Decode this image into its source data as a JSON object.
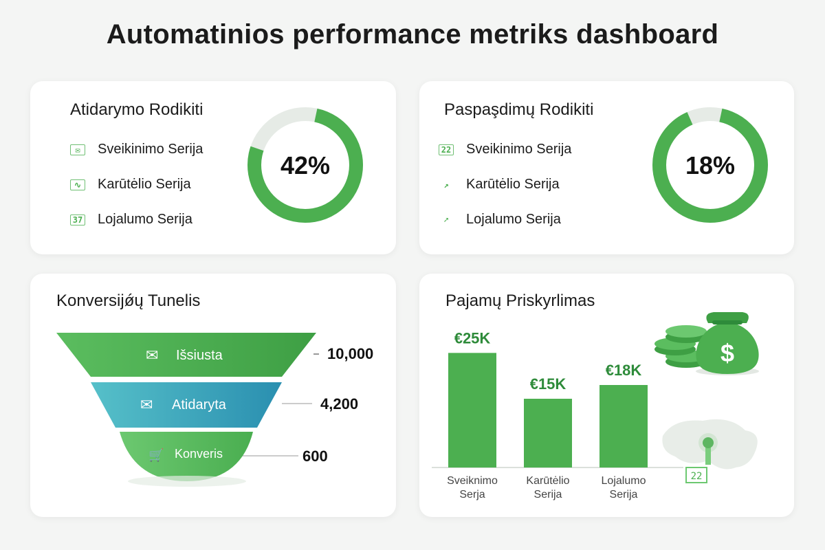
{
  "page": {
    "title": "Automatinios performance metriks dashboard"
  },
  "open_rate": {
    "title": "Atidarymo Rodikiti",
    "items": [
      {
        "label": "Sveikinimo Serija",
        "icon": "mail-icon",
        "glyph": "✉"
      },
      {
        "label": "Karūtėlio Serija",
        "icon": "trend-icon",
        "glyph": "∿"
      },
      {
        "label": "Lojalumo Serija",
        "icon": "calendar-icon",
        "glyph": "37"
      }
    ],
    "value_label": "42%",
    "value": 42
  },
  "click_rate": {
    "title": "Paspaşdimų Rodikiti",
    "items": [
      {
        "label": "Sveikinimo Serija",
        "icon": "calendar-icon",
        "glyph": "22"
      },
      {
        "label": "Karūtėlio Serija",
        "icon": "trend-up-icon",
        "glyph": "↗"
      },
      {
        "label": "Lojalumo Serija",
        "icon": "arrow-icon",
        "glyph": "➚"
      }
    ],
    "value_label": "18%",
    "value": 18
  },
  "funnel": {
    "title": "Konversijǿų Tunelis",
    "stages": [
      {
        "label": "Išsiusta",
        "value_label": "10,000",
        "value": 10000,
        "icon": "mail-icon",
        "glyph": "✉"
      },
      {
        "label": "Atidaryta",
        "value_label": "4,200",
        "value": 4200,
        "icon": "mail-icon",
        "glyph": "✉"
      },
      {
        "label": "Konveris",
        "value_label": "600",
        "value": 600,
        "icon": "cart-icon",
        "glyph": "🛒"
      }
    ]
  },
  "revenue": {
    "title": "Pajamų Priskyrlimas",
    "calendar_glyph": "22"
  },
  "chart_data": [
    {
      "type": "pie",
      "title": "Atidarymo Rodikiti",
      "values": [
        42
      ],
      "labels": [
        "42%"
      ]
    },
    {
      "type": "pie",
      "title": "Paspaşdimų Rodikiti",
      "values": [
        18
      ],
      "labels": [
        "18%"
      ]
    },
    {
      "type": "bar",
      "title": "Konversijǿų Tunelis",
      "categories": [
        "Išsiusta",
        "Atidaryta",
        "Konveris"
      ],
      "values": [
        10000,
        4200,
        600
      ]
    },
    {
      "type": "bar",
      "title": "Pajamų Priskyrlimas",
      "categories": [
        "Sveiknimo Serja",
        "Karūtėlio Serija",
        "Lojalumo Serija"
      ],
      "category_lines": [
        [
          "Sveiknimo",
          "Serja"
        ],
        [
          "Karūtėlio",
          "Serija"
        ],
        [
          "Lojalumo",
          "Serija"
        ]
      ],
      "values": [
        25,
        15,
        18
      ],
      "value_labels": [
        "€25K",
        "€15K",
        "€18K"
      ],
      "ylim": [
        0,
        30
      ]
    }
  ],
  "colors": {
    "green": "#4caf50",
    "green_dark": "#2e8b3a",
    "green_light": "#8bd68f",
    "teal": "#3aa6b9",
    "track": "#e6ebe6"
  }
}
